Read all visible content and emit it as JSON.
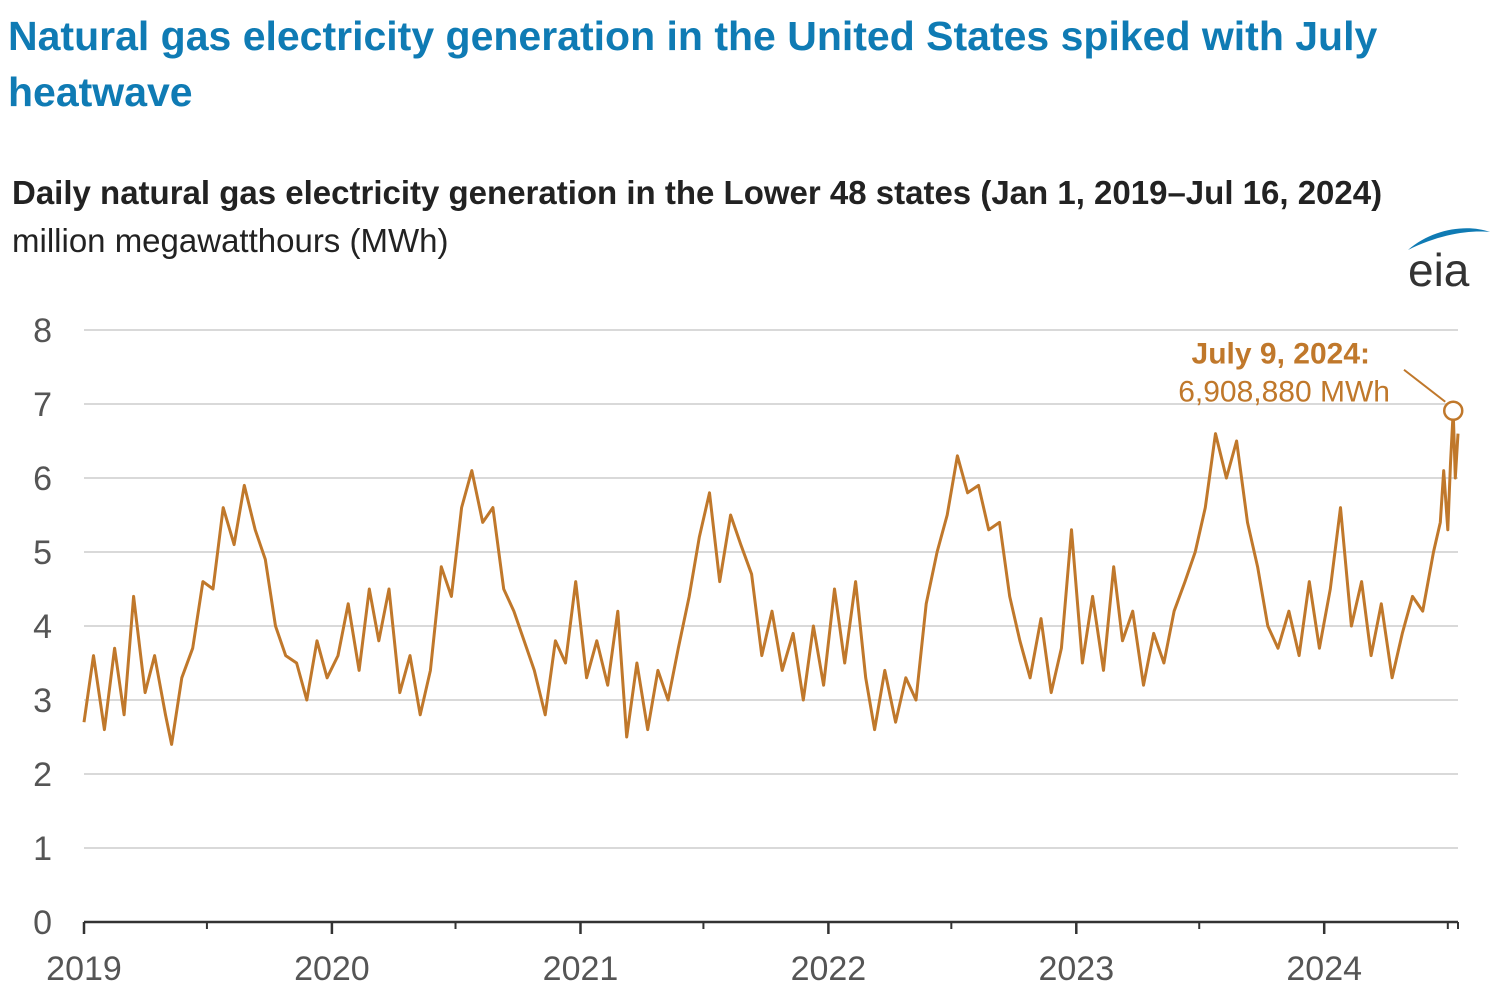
{
  "headline": "Natural gas electricity generation in the United States spiked with July heatwave",
  "chart_data": {
    "type": "line",
    "title": "Daily natural gas electricity generation in the Lower 48 states (Jan 1, 2019–Jul 16, 2024)",
    "ylabel": "million megawatthours (MWh)",
    "xlabel": "",
    "x_start": "2019-01-01",
    "x_end": "2024-07-16",
    "ylim": [
      0,
      8
    ],
    "yticks": [
      "0",
      "1",
      "2",
      "3",
      "4",
      "5",
      "6",
      "7",
      "8"
    ],
    "xticks": [
      "2019",
      "2020",
      "2021",
      "2022",
      "2023",
      "2024"
    ],
    "grid": true,
    "color": "#c0782b",
    "series": [
      {
        "points": [
          [
            "2019-01-01",
            2.7
          ],
          [
            "2019-01-15",
            3.6
          ],
          [
            "2019-01-31",
            2.6
          ],
          [
            "2019-02-15",
            3.7
          ],
          [
            "2019-03-01",
            2.8
          ],
          [
            "2019-03-15",
            4.4
          ],
          [
            "2019-04-01",
            3.1
          ],
          [
            "2019-04-15",
            3.6
          ],
          [
            "2019-05-01",
            2.8
          ],
          [
            "2019-05-10",
            2.4
          ],
          [
            "2019-05-25",
            3.3
          ],
          [
            "2019-06-10",
            3.7
          ],
          [
            "2019-06-25",
            4.6
          ],
          [
            "2019-07-10",
            4.5
          ],
          [
            "2019-07-25",
            5.6
          ],
          [
            "2019-08-10",
            5.1
          ],
          [
            "2019-08-25",
            5.9
          ],
          [
            "2019-09-10",
            5.3
          ],
          [
            "2019-09-25",
            4.9
          ],
          [
            "2019-10-10",
            4.0
          ],
          [
            "2019-10-25",
            3.6
          ],
          [
            "2019-11-10",
            3.5
          ],
          [
            "2019-11-25",
            3.0
          ],
          [
            "2019-12-10",
            3.8
          ],
          [
            "2019-12-25",
            3.3
          ],
          [
            "2020-01-10",
            3.6
          ],
          [
            "2020-01-25",
            4.3
          ],
          [
            "2020-02-10",
            3.4
          ],
          [
            "2020-02-25",
            4.5
          ],
          [
            "2020-03-10",
            3.8
          ],
          [
            "2020-03-25",
            4.5
          ],
          [
            "2020-04-10",
            3.1
          ],
          [
            "2020-04-25",
            3.6
          ],
          [
            "2020-05-10",
            2.8
          ],
          [
            "2020-05-25",
            3.4
          ],
          [
            "2020-06-10",
            4.8
          ],
          [
            "2020-06-25",
            4.4
          ],
          [
            "2020-07-10",
            5.6
          ],
          [
            "2020-07-25",
            6.1
          ],
          [
            "2020-08-10",
            5.4
          ],
          [
            "2020-08-25",
            5.6
          ],
          [
            "2020-09-10",
            4.5
          ],
          [
            "2020-09-25",
            4.2
          ],
          [
            "2020-10-10",
            3.8
          ],
          [
            "2020-10-25",
            3.4
          ],
          [
            "2020-11-10",
            2.8
          ],
          [
            "2020-11-25",
            3.8
          ],
          [
            "2020-12-10",
            3.5
          ],
          [
            "2020-12-25",
            4.6
          ],
          [
            "2021-01-10",
            3.3
          ],
          [
            "2021-01-25",
            3.8
          ],
          [
            "2021-02-10",
            3.2
          ],
          [
            "2021-02-25",
            4.2
          ],
          [
            "2021-03-10",
            2.5
          ],
          [
            "2021-03-25",
            3.5
          ],
          [
            "2021-04-10",
            2.6
          ],
          [
            "2021-04-25",
            3.4
          ],
          [
            "2021-05-10",
            3.0
          ],
          [
            "2021-05-25",
            3.7
          ],
          [
            "2021-06-10",
            4.4
          ],
          [
            "2021-06-25",
            5.2
          ],
          [
            "2021-07-10",
            5.8
          ],
          [
            "2021-07-25",
            4.6
          ],
          [
            "2021-08-10",
            5.5
          ],
          [
            "2021-08-25",
            5.1
          ],
          [
            "2021-09-10",
            4.7
          ],
          [
            "2021-09-25",
            3.6
          ],
          [
            "2021-10-10",
            4.2
          ],
          [
            "2021-10-25",
            3.4
          ],
          [
            "2021-11-10",
            3.9
          ],
          [
            "2021-11-25",
            3.0
          ],
          [
            "2021-12-10",
            4.0
          ],
          [
            "2021-12-25",
            3.2
          ],
          [
            "2022-01-10",
            4.5
          ],
          [
            "2022-01-25",
            3.5
          ],
          [
            "2022-02-10",
            4.6
          ],
          [
            "2022-02-25",
            3.3
          ],
          [
            "2022-03-10",
            2.6
          ],
          [
            "2022-03-25",
            3.4
          ],
          [
            "2022-04-10",
            2.7
          ],
          [
            "2022-04-25",
            3.3
          ],
          [
            "2022-05-10",
            3.0
          ],
          [
            "2022-05-25",
            4.3
          ],
          [
            "2022-06-10",
            5.0
          ],
          [
            "2022-06-25",
            5.5
          ],
          [
            "2022-07-10",
            6.3
          ],
          [
            "2022-07-25",
            5.8
          ],
          [
            "2022-08-10",
            5.9
          ],
          [
            "2022-08-25",
            5.3
          ],
          [
            "2022-09-10",
            5.4
          ],
          [
            "2022-09-25",
            4.4
          ],
          [
            "2022-10-10",
            3.8
          ],
          [
            "2022-10-25",
            3.3
          ],
          [
            "2022-11-10",
            4.1
          ],
          [
            "2022-11-25",
            3.1
          ],
          [
            "2022-12-10",
            3.7
          ],
          [
            "2022-12-25",
            5.3
          ],
          [
            "2023-01-10",
            3.5
          ],
          [
            "2023-01-25",
            4.4
          ],
          [
            "2023-02-10",
            3.4
          ],
          [
            "2023-02-25",
            4.8
          ],
          [
            "2023-03-10",
            3.8
          ],
          [
            "2023-03-25",
            4.2
          ],
          [
            "2023-04-10",
            3.2
          ],
          [
            "2023-04-25",
            3.9
          ],
          [
            "2023-05-10",
            3.5
          ],
          [
            "2023-05-25",
            4.2
          ],
          [
            "2023-06-10",
            4.6
          ],
          [
            "2023-06-25",
            5.0
          ],
          [
            "2023-07-10",
            5.6
          ],
          [
            "2023-07-25",
            6.6
          ],
          [
            "2023-08-10",
            6.0
          ],
          [
            "2023-08-25",
            6.5
          ],
          [
            "2023-09-10",
            5.4
          ],
          [
            "2023-09-25",
            4.8
          ],
          [
            "2023-10-10",
            4.0
          ],
          [
            "2023-10-25",
            3.7
          ],
          [
            "2023-11-10",
            4.2
          ],
          [
            "2023-11-25",
            3.6
          ],
          [
            "2023-12-10",
            4.6
          ],
          [
            "2023-12-25",
            3.7
          ],
          [
            "2024-01-10",
            4.5
          ],
          [
            "2024-01-25",
            5.6
          ],
          [
            "2024-02-10",
            4.0
          ],
          [
            "2024-02-25",
            4.6
          ],
          [
            "2024-03-10",
            3.6
          ],
          [
            "2024-03-25",
            4.3
          ],
          [
            "2024-04-10",
            3.3
          ],
          [
            "2024-04-25",
            3.9
          ],
          [
            "2024-05-10",
            4.4
          ],
          [
            "2024-05-25",
            4.2
          ],
          [
            "2024-06-10",
            5.0
          ],
          [
            "2024-06-20",
            5.4
          ],
          [
            "2024-06-25",
            6.1
          ],
          [
            "2024-07-01",
            5.3
          ],
          [
            "2024-07-05",
            6.2
          ],
          [
            "2024-07-09",
            6.9
          ],
          [
            "2024-07-12",
            6.0
          ],
          [
            "2024-07-16",
            6.6
          ]
        ]
      }
    ],
    "annotation": {
      "date": "2024-07-09",
      "value": 6.90888,
      "label_bold": "July 9, 2024:",
      "label_value": "6,908,880 MWh"
    }
  },
  "logo": {
    "text": "eia",
    "color": "#0f7bb4"
  }
}
